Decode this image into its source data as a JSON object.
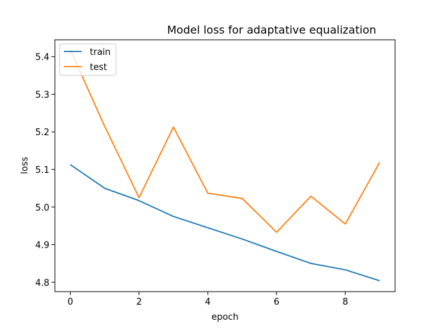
{
  "chart_data": {
    "type": "line",
    "title": "Model loss for adaptative equalization",
    "xlabel": "epoch",
    "ylabel": "loss",
    "xlim": [
      -0.45,
      9.45
    ],
    "ylim": [
      4.775,
      5.445
    ],
    "xticks": [
      0,
      2,
      4,
      6,
      8
    ],
    "yticks": [
      4.8,
      4.9,
      5.0,
      5.1,
      5.2,
      5.3,
      5.4
    ],
    "grid": false,
    "legend_position": "top-left",
    "x": [
      0,
      1,
      2,
      3,
      4,
      5,
      6,
      7,
      8,
      9
    ],
    "series": [
      {
        "name": "train",
        "color": "#1f77b4",
        "values": [
          5.113,
          5.05,
          5.017,
          4.975,
          4.945,
          4.915,
          4.882,
          4.85,
          4.833,
          4.804
        ]
      },
      {
        "name": "test",
        "color": "#ff7f0e",
        "values": [
          5.418,
          5.215,
          5.025,
          5.213,
          5.037,
          5.023,
          4.933,
          5.029,
          4.955,
          5.119
        ]
      }
    ]
  }
}
